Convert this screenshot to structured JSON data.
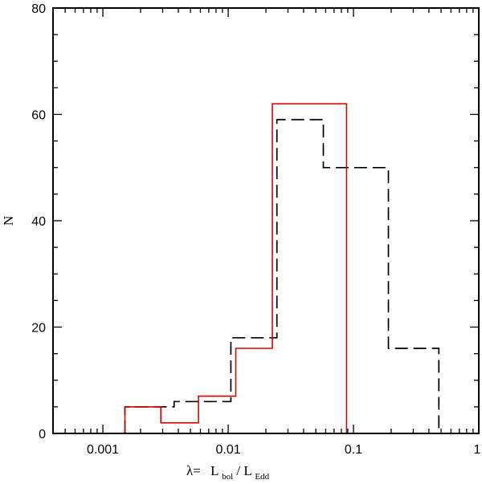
{
  "chart_data": {
    "type": "line",
    "title": "",
    "xlabel": {
      "prefix": "λ=",
      "num_main": "L",
      "num_sub": "bol",
      "slash": "/",
      "den_main": "L",
      "den_sub": "Edd"
    },
    "ylabel": "N",
    "xscale": "log",
    "xlim": [
      0.0004,
      1
    ],
    "ylim": [
      0,
      80
    ],
    "x_ticks": [
      {
        "value": 0.001,
        "label": "0.001"
      },
      {
        "value": 0.01,
        "label": "0.01"
      },
      {
        "value": 0.1,
        "label": "0.1"
      },
      {
        "value": 1,
        "label": "1"
      }
    ],
    "y_ticks": [
      {
        "value": 0,
        "label": "0"
      },
      {
        "value": 20,
        "label": "20"
      },
      {
        "value": 40,
        "label": "40"
      },
      {
        "value": 60,
        "label": "60"
      },
      {
        "value": 80,
        "label": "80"
      }
    ],
    "grid": false,
    "legend": "none",
    "series": [
      {
        "style": "dashed",
        "color": "#000000",
        "bin_edges": [
          0.0015,
          0.0037,
          0.0058,
          0.0105,
          0.0245,
          0.0575,
          0.088,
          0.19,
          0.48
        ],
        "values": [
          5,
          6,
          6,
          18,
          59,
          50,
          50,
          16
        ]
      },
      {
        "style": "solid",
        "color": "#dd0000",
        "bin_edges": [
          0.0015,
          0.0029,
          0.0058,
          0.0115,
          0.0225,
          0.088
        ],
        "values": [
          5,
          2,
          7,
          16,
          62
        ]
      }
    ]
  }
}
